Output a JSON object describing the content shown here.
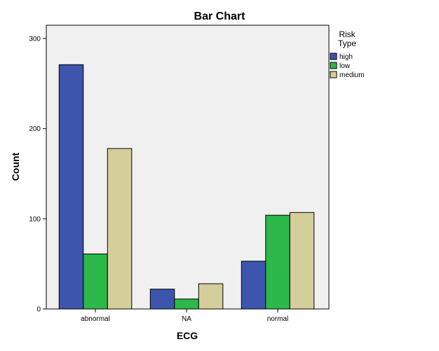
{
  "chart_data": {
    "type": "bar",
    "title": "Bar Chart",
    "xlabel": "ECG",
    "ylabel": "Count",
    "categories": [
      "abnormal",
      "NA",
      "normal"
    ],
    "series": [
      {
        "name": "high",
        "values": [
          271,
          22,
          53
        ],
        "color": "#3d55ad"
      },
      {
        "name": "low",
        "values": [
          61,
          11,
          104
        ],
        "color": "#2db84a"
      },
      {
        "name": "medium",
        "values": [
          178,
          28,
          107
        ],
        "color": "#d4cf9a"
      }
    ],
    "ylim": [
      0,
      300
    ],
    "yticks": [
      "0",
      "100",
      "200",
      "300"
    ],
    "legend": {
      "title_line1": "Risk",
      "title_line2": "Type",
      "placement": "right"
    },
    "plot_background": "#f0f0f0",
    "grid": false
  }
}
